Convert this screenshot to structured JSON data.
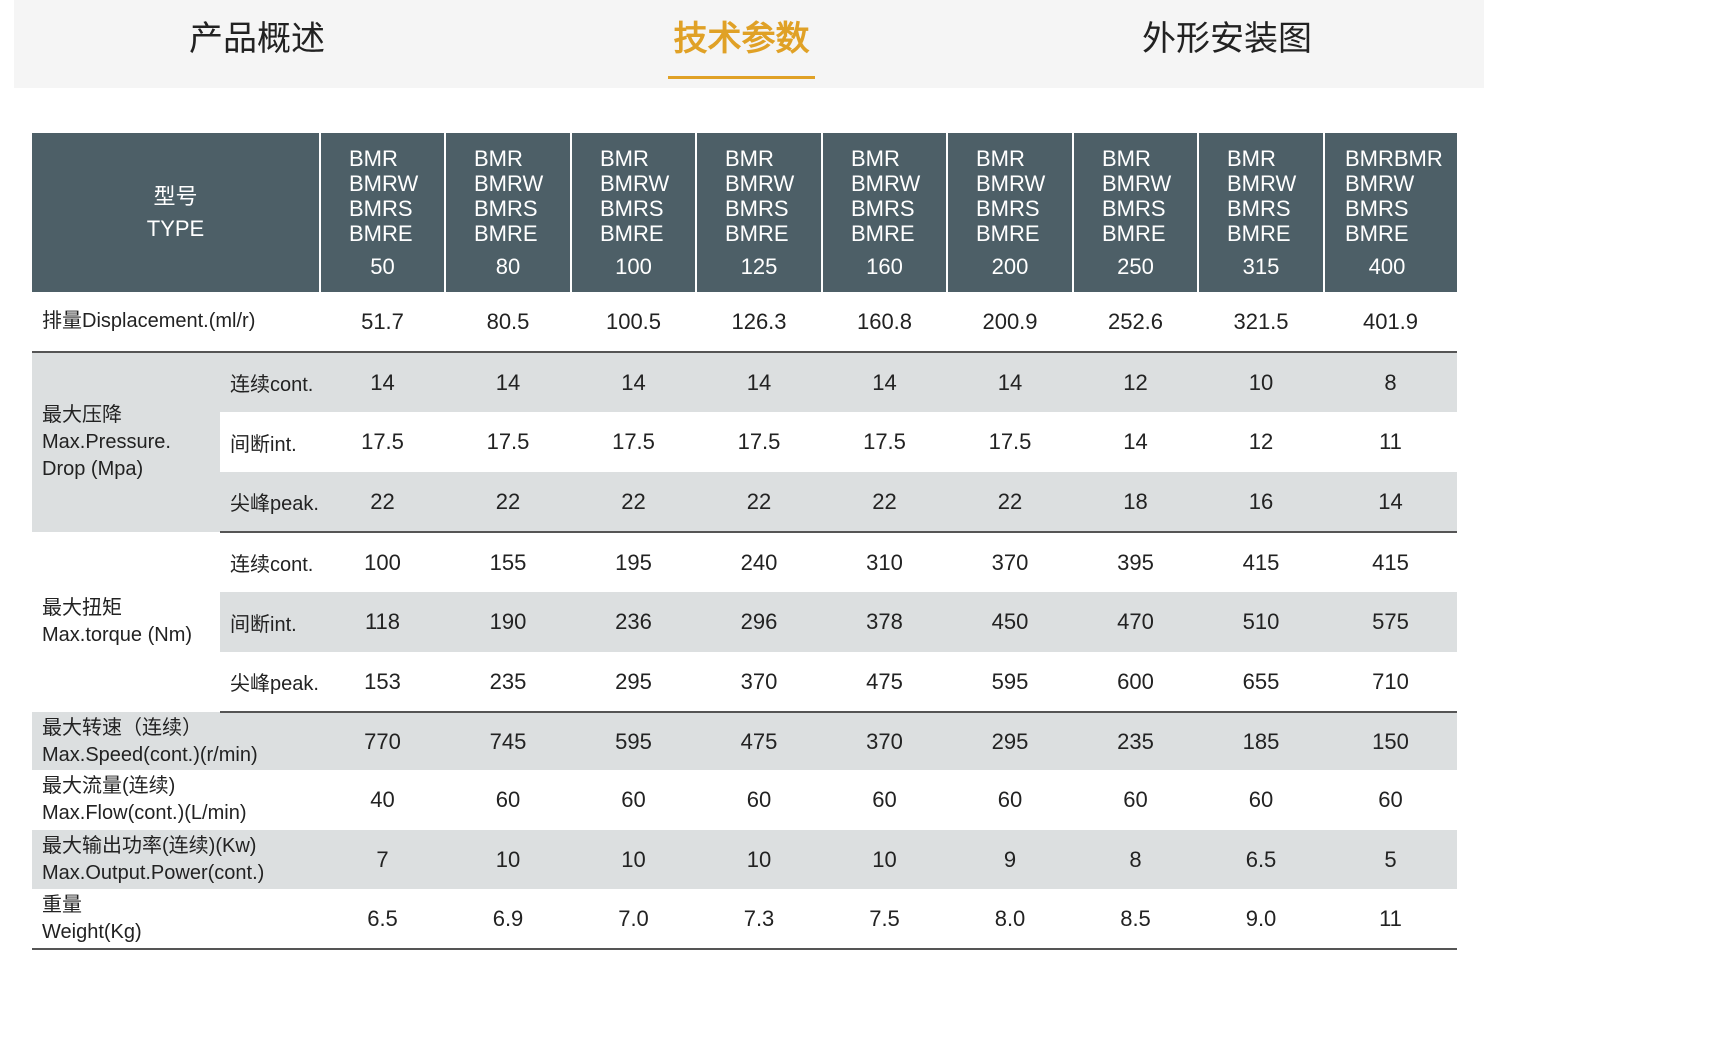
{
  "tabs": [
    {
      "label": "产品概述",
      "active": false
    },
    {
      "label": "技术参数",
      "active": true
    },
    {
      "label": "外形安装图",
      "active": false
    }
  ],
  "accent_color": "#e0a126",
  "header_color": "#4d5f67",
  "table": {
    "type_label_cn": "型号",
    "type_label_en": "TYPE",
    "models": [
      {
        "series": [
          "BMR",
          "BMRW",
          "BMRS",
          "BMRE"
        ],
        "size": "50"
      },
      {
        "series": [
          "BMR",
          "BMRW",
          "BMRS",
          "BMRE"
        ],
        "size": "80"
      },
      {
        "series": [
          "BMR",
          "BMRW",
          "BMRS",
          "BMRE"
        ],
        "size": "100"
      },
      {
        "series": [
          "BMR",
          "BMRW",
          "BMRS",
          "BMRE"
        ],
        "size": "125"
      },
      {
        "series": [
          "BMR",
          "BMRW",
          "BMRS",
          "BMRE"
        ],
        "size": "160"
      },
      {
        "series": [
          "BMR",
          "BMRW",
          "BMRS",
          "BMRE"
        ],
        "size": "200"
      },
      {
        "series": [
          "BMR",
          "BMRW",
          "BMRS",
          "BMRE"
        ],
        "size": "250"
      },
      {
        "series": [
          "BMR",
          "BMRW",
          "BMRS",
          "BMRE"
        ],
        "size": "315"
      },
      {
        "series": [
          "BMRBMR",
          "BMRW",
          "BMRS",
          "BMRE"
        ],
        "size": "400"
      }
    ],
    "displacement": {
      "label": "排量Displacement.(ml/r)",
      "values": [
        "51.7",
        "80.5",
        "100.5",
        "126.3",
        "160.8",
        "200.9",
        "252.6",
        "321.5",
        "401.9"
      ]
    },
    "pressure": {
      "label_cn": "最大压降",
      "label_en1": "Max.Pressure.",
      "label_en2": "Drop (Mpa)",
      "rows": [
        {
          "label": "连续cont.",
          "values": [
            "14",
            "14",
            "14",
            "14",
            "14",
            "14",
            "12",
            "10",
            "8"
          ]
        },
        {
          "label": "间断int.",
          "values": [
            "17.5",
            "17.5",
            "17.5",
            "17.5",
            "17.5",
            "17.5",
            "14",
            "12",
            "11"
          ]
        },
        {
          "label": "尖峰peak.",
          "values": [
            "22",
            "22",
            "22",
            "22",
            "22",
            "22",
            "18",
            "16",
            "14"
          ]
        }
      ]
    },
    "torque": {
      "label_cn": "最大扭矩",
      "label_en": "Max.torque (Nm)",
      "rows": [
        {
          "label": "连续cont.",
          "values": [
            "100",
            "155",
            "195",
            "240",
            "310",
            "370",
            "395",
            "415",
            "415"
          ]
        },
        {
          "label": "间断int.",
          "values": [
            "118",
            "190",
            "236",
            "296",
            "378",
            "450",
            "470",
            "510",
            "575"
          ]
        },
        {
          "label": "尖峰peak.",
          "values": [
            "153",
            "235",
            "295",
            "370",
            "475",
            "595",
            "600",
            "655",
            "710"
          ]
        }
      ]
    },
    "speed": {
      "label_cn": "最大转速（连续）",
      "label_en": "Max.Speed(cont.)(r/min)",
      "values": [
        "770",
        "745",
        "595",
        "475",
        "370",
        "295",
        "235",
        "185",
        "150"
      ]
    },
    "flow": {
      "label_cn": "最大流量(连续)",
      "label_en": "Max.Flow(cont.)(L/min)",
      "values": [
        "40",
        "60",
        "60",
        "60",
        "60",
        "60",
        "60",
        "60",
        "60"
      ]
    },
    "power": {
      "label_cn": "最大输出功率(连续)(Kw)",
      "label_en": "Max.Output.Power(cont.)",
      "values": [
        "7",
        "10",
        "10",
        "10",
        "10",
        "9",
        "8",
        "6.5",
        "5"
      ]
    },
    "weight": {
      "label_cn": "重量",
      "label_en": "Weight(Kg)",
      "values": [
        "6.5",
        "6.9",
        "7.0",
        "7.3",
        "7.5",
        "8.0",
        "8.5",
        "9.0",
        "11"
      ]
    }
  }
}
